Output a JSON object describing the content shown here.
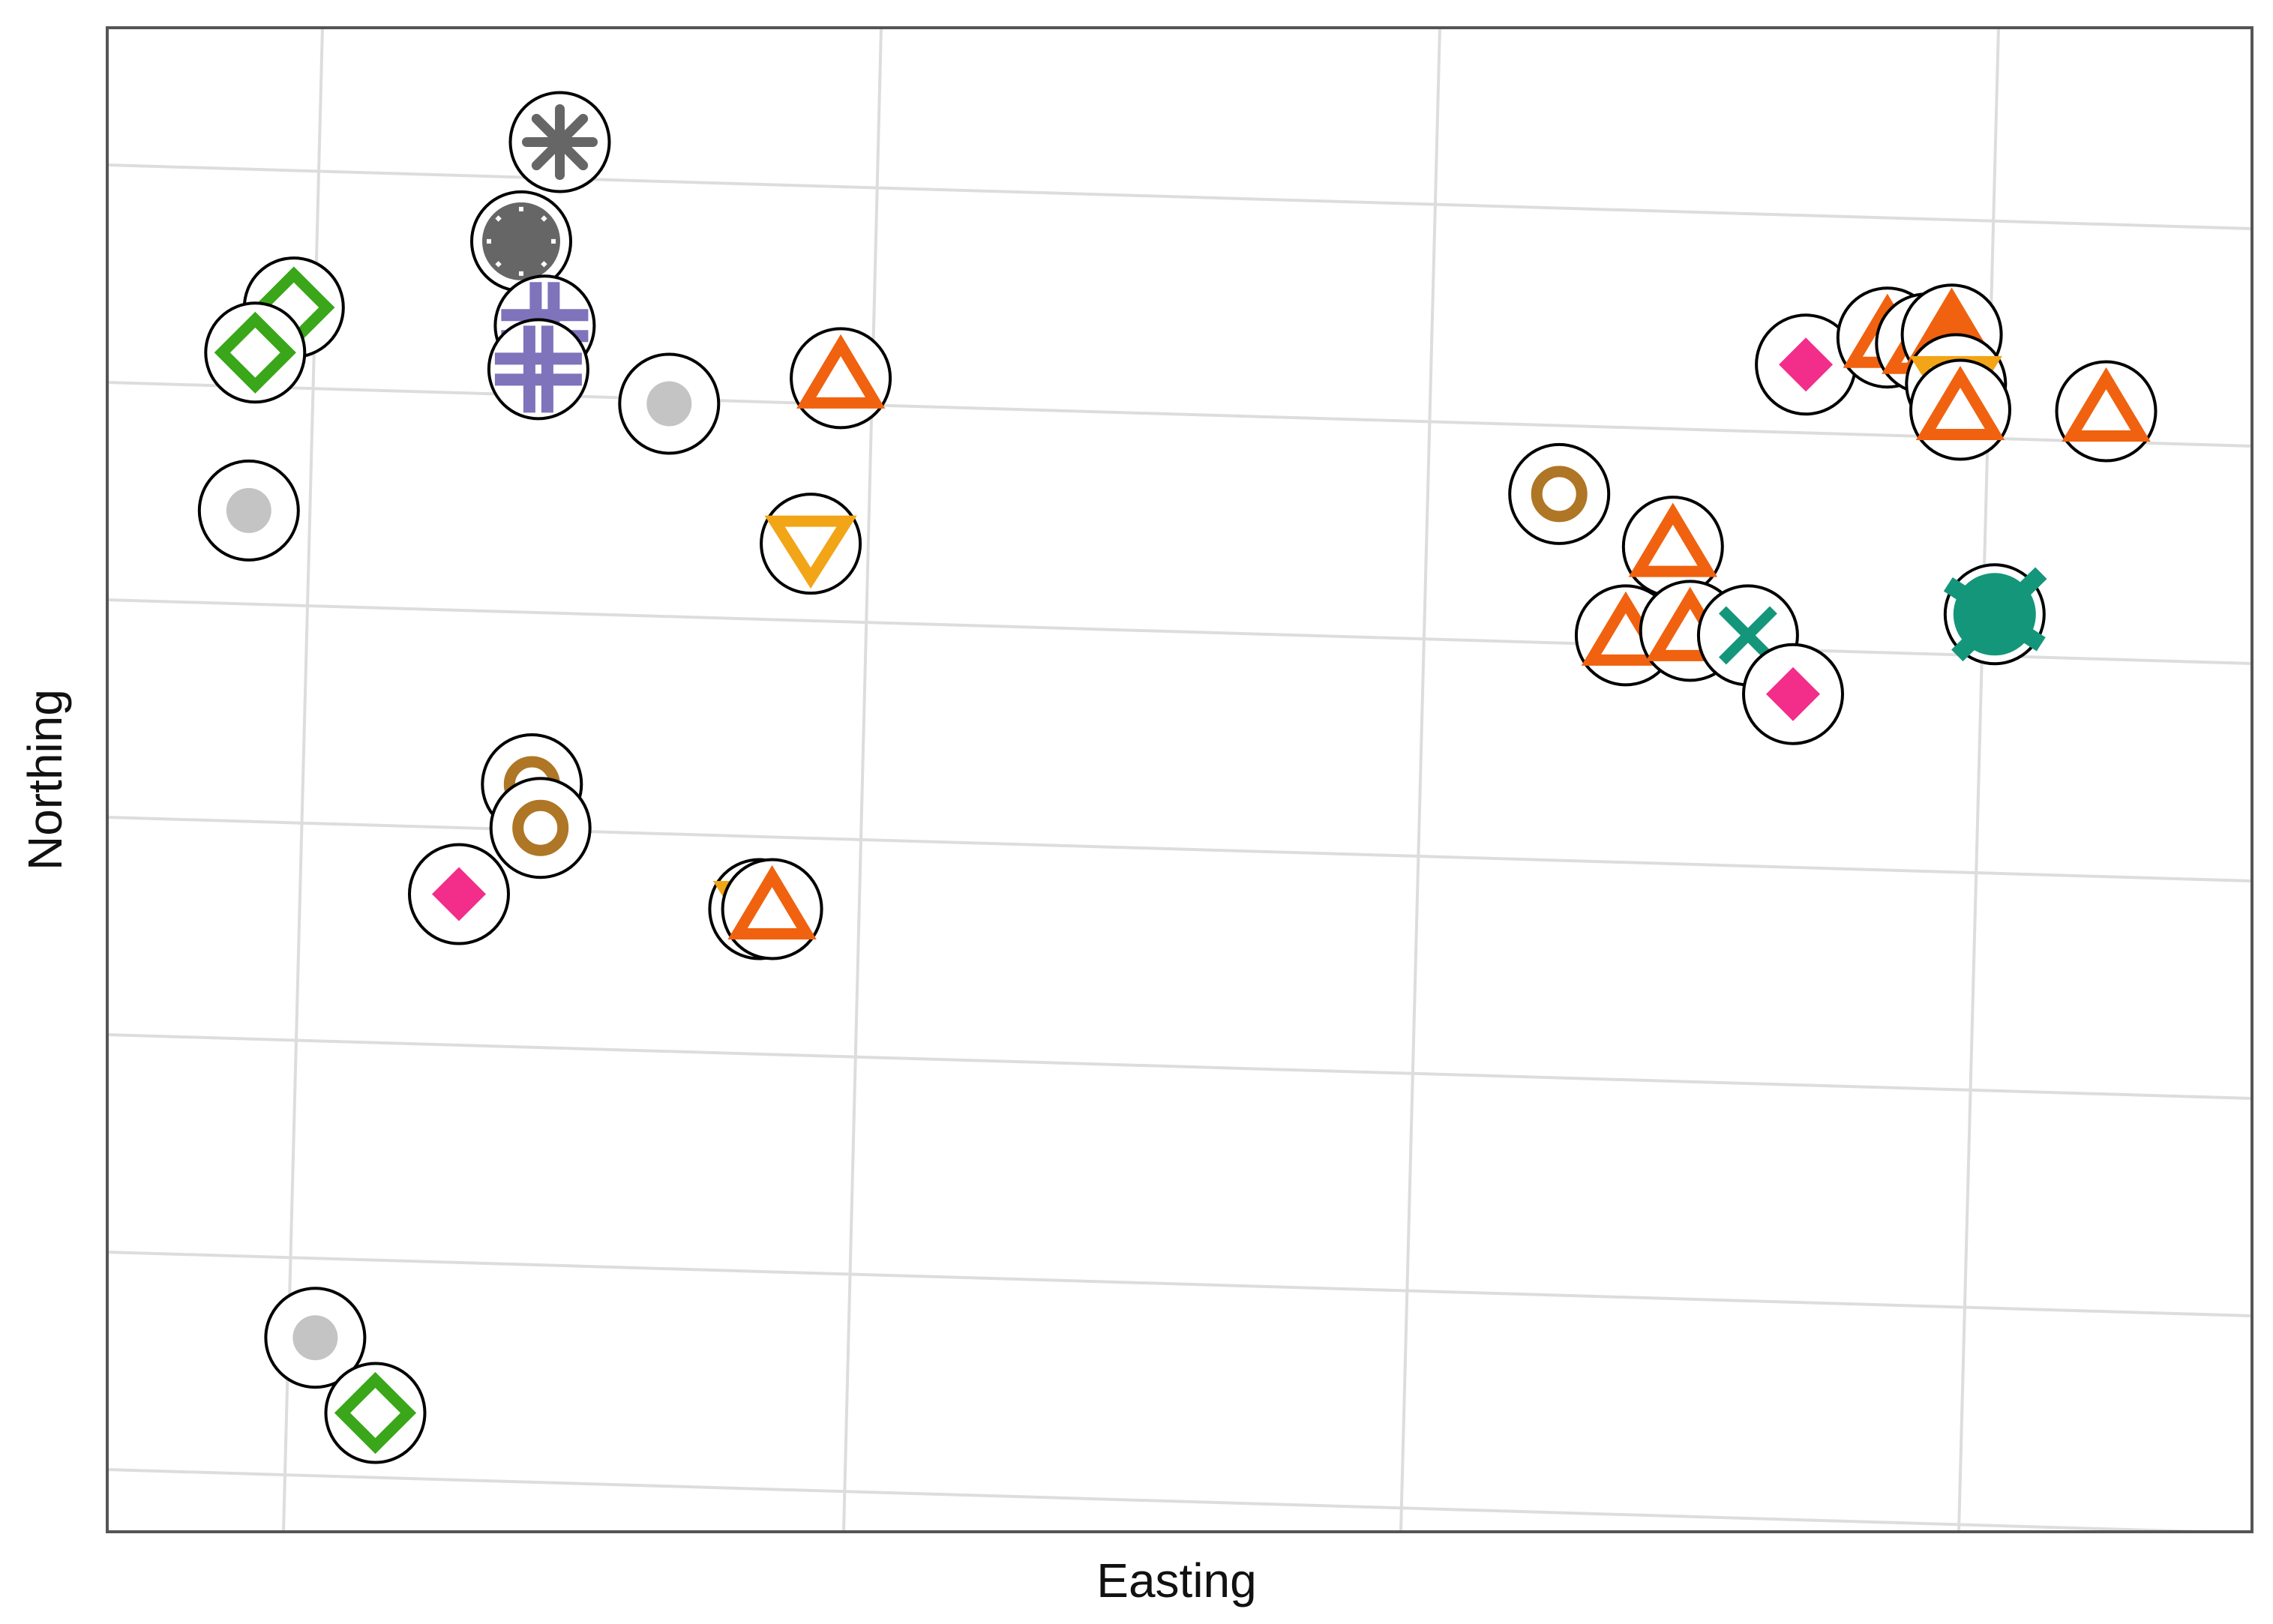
{
  "chart_data": {
    "type": "scatter",
    "title": "",
    "xlabel": "Easting",
    "ylabel": "Northing",
    "xlim": [
      0,
      100
    ],
    "ylim": [
      0,
      100
    ],
    "grid": true,
    "tick_labels_visible": false,
    "legend": "none",
    "colors": {
      "grid": "#dddddd",
      "frame": "#555555",
      "ring": "#000000",
      "green": "#3aa619",
      "gray_dark": "#666666",
      "gray_light": "#c4c4c4",
      "purple": "#7f73bb",
      "orange": "#f0620f",
      "yellow": "#f2a516",
      "brown": "#ae7625",
      "pink": "#f22d8a",
      "teal": "#14967a"
    },
    "points": [
      {
        "x": 8.7,
        "y": 81.4,
        "shape": "diamond-open",
        "color": "green"
      },
      {
        "x": 6.9,
        "y": 78.4,
        "shape": "diamond-open",
        "color": "green"
      },
      {
        "x": 21.1,
        "y": 92.4,
        "shape": "asterisk",
        "color": "gray_dark"
      },
      {
        "x": 19.3,
        "y": 85.8,
        "shape": "gear",
        "color": "gray_dark"
      },
      {
        "x": 20.4,
        "y": 80.2,
        "shape": "hash",
        "color": "purple"
      },
      {
        "x": 20.1,
        "y": 77.3,
        "shape": "hash",
        "color": "purple"
      },
      {
        "x": 26.2,
        "y": 75.0,
        "shape": "dot",
        "color": "gray_light"
      },
      {
        "x": 6.6,
        "y": 67.9,
        "shape": "dot",
        "color": "gray_light"
      },
      {
        "x": 34.2,
        "y": 76.7,
        "shape": "triangle-up",
        "color": "orange"
      },
      {
        "x": 32.8,
        "y": 65.7,
        "shape": "triangle-down",
        "color": "yellow"
      },
      {
        "x": 19.8,
        "y": 49.7,
        "shape": "circle-open",
        "color": "brown"
      },
      {
        "x": 20.2,
        "y": 46.8,
        "shape": "circle-open",
        "color": "brown"
      },
      {
        "x": 16.4,
        "y": 42.4,
        "shape": "diamond",
        "color": "pink"
      },
      {
        "x": 30.4,
        "y": 41.4,
        "shape": "triangle-down",
        "color": "yellow"
      },
      {
        "x": 31.0,
        "y": 41.4,
        "shape": "triangle-up",
        "color": "orange"
      },
      {
        "x": 9.7,
        "y": 12.9,
        "shape": "dot",
        "color": "gray_light"
      },
      {
        "x": 12.5,
        "y": 7.9,
        "shape": "diamond-open",
        "color": "green"
      },
      {
        "x": 67.7,
        "y": 69.0,
        "shape": "circle-open",
        "color": "brown"
      },
      {
        "x": 73.0,
        "y": 65.5,
        "shape": "triangle-up",
        "color": "orange"
      },
      {
        "x": 70.8,
        "y": 59.6,
        "shape": "triangle-up",
        "color": "orange"
      },
      {
        "x": 73.8,
        "y": 59.9,
        "shape": "triangle-up",
        "color": "orange"
      },
      {
        "x": 76.5,
        "y": 59.6,
        "shape": "x",
        "color": "teal"
      },
      {
        "x": 78.6,
        "y": 55.7,
        "shape": "diamond",
        "color": "pink"
      },
      {
        "x": 79.2,
        "y": 77.6,
        "shape": "diamond",
        "color": "pink"
      },
      {
        "x": 83.0,
        "y": 79.4,
        "shape": "triangle-up",
        "color": "orange"
      },
      {
        "x": 84.8,
        "y": 79.0,
        "shape": "triangle-up",
        "color": "orange"
      },
      {
        "x": 86.0,
        "y": 79.6,
        "shape": "triangle-up-filled",
        "color": "orange"
      },
      {
        "x": 86.2,
        "y": 76.3,
        "shape": "triangle-down",
        "color": "yellow"
      },
      {
        "x": 86.4,
        "y": 74.6,
        "shape": "triangle-up",
        "color": "orange"
      },
      {
        "x": 93.2,
        "y": 74.5,
        "shape": "triangle-up",
        "color": "orange"
      },
      {
        "x": 88.0,
        "y": 61.0,
        "shape": "x-filled",
        "color": "teal"
      }
    ]
  }
}
